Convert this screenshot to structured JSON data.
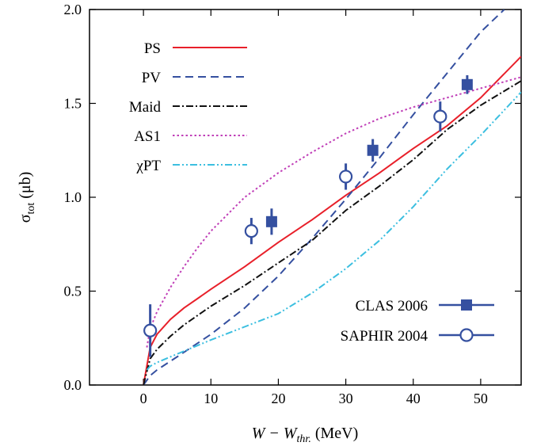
{
  "chart_data": {
    "type": "line",
    "title": "",
    "xlabel": {
      "main": "W − W",
      "sub": "thr.",
      "unit": " (MeV)"
    },
    "ylabel": {
      "main": "σ",
      "sub": "tot",
      "unit": " (μb)"
    },
    "xlim": [
      -8,
      56
    ],
    "ylim": [
      0,
      2.0
    ],
    "xticks": [
      0,
      10,
      20,
      30,
      40,
      50
    ],
    "yticks": [
      0,
      0.5,
      1.0,
      1.5,
      2.0
    ],
    "xtick_labels": [
      "0",
      "10",
      "20",
      "30",
      "40",
      "50"
    ],
    "ytick_labels": [
      "0.0",
      "0.5",
      "1.0",
      "1.5",
      "2.0"
    ],
    "grid": false,
    "legend_lines_position": "top-left",
    "legend_points_position": "bottom-right",
    "series": [
      {
        "name": "PS",
        "color": "#e8202a",
        "dash": "solid",
        "x": [
          0,
          1,
          2,
          4,
          6,
          8,
          10,
          15,
          20,
          25,
          30,
          35,
          40,
          45,
          50,
          56
        ],
        "y": [
          0,
          0.2,
          0.27,
          0.35,
          0.41,
          0.46,
          0.51,
          0.63,
          0.76,
          0.88,
          1.01,
          1.13,
          1.26,
          1.38,
          1.53,
          1.75
        ]
      },
      {
        "name": "PV",
        "color": "#3550a0",
        "dash": "10 6",
        "x": [
          0,
          1,
          2,
          5,
          10,
          15,
          20,
          25,
          30,
          35,
          40,
          45,
          50,
          53.5
        ],
        "y": [
          0,
          0.05,
          0.08,
          0.15,
          0.27,
          0.41,
          0.58,
          0.78,
          0.99,
          1.21,
          1.44,
          1.66,
          1.88,
          2.0
        ]
      },
      {
        "name": "Maid",
        "color": "#111111",
        "dash": "9 3 2 3",
        "x": [
          0,
          1,
          2,
          4,
          6,
          8,
          10,
          15,
          20,
          25,
          30,
          35,
          40,
          45,
          50,
          56
        ],
        "y": [
          0,
          0.14,
          0.19,
          0.26,
          0.32,
          0.37,
          0.42,
          0.53,
          0.65,
          0.77,
          0.93,
          1.06,
          1.2,
          1.36,
          1.49,
          1.62
        ]
      },
      {
        "name": "AS1",
        "color": "#c040b8",
        "dash": "2.5 3",
        "x": [
          0.5,
          1,
          2,
          4,
          6,
          8,
          10,
          15,
          20,
          25,
          30,
          35,
          40,
          45,
          50,
          56
        ],
        "y": [
          0.2,
          0.3,
          0.39,
          0.52,
          0.63,
          0.73,
          0.82,
          1.0,
          1.13,
          1.24,
          1.34,
          1.42,
          1.48,
          1.53,
          1.58,
          1.64
        ]
      },
      {
        "name": "χPT",
        "color": "#3cbfe0",
        "dash": "9 3 2 3 2 3",
        "x": [
          0.5,
          1,
          2,
          4,
          6,
          8,
          10,
          15,
          20,
          25,
          30,
          35,
          40,
          45,
          50,
          56
        ],
        "y": [
          0.08,
          0.1,
          0.12,
          0.15,
          0.18,
          0.21,
          0.24,
          0.31,
          0.38,
          0.49,
          0.62,
          0.77,
          0.95,
          1.15,
          1.33,
          1.56
        ]
      }
    ],
    "points": [
      {
        "name": "CLAS 2006",
        "marker": "filled-square",
        "color": "#3550a0",
        "x": [
          19,
          34,
          48
        ],
        "y": [
          0.87,
          1.25,
          1.6
        ],
        "yerr": [
          0.07,
          0.06,
          0.05
        ]
      },
      {
        "name": "SAPHIR 2004",
        "marker": "open-circle",
        "color": "#3550a0",
        "x": [
          1,
          16,
          30,
          44
        ],
        "y": [
          0.29,
          0.82,
          1.11,
          1.43
        ],
        "yerr": [
          0.14,
          0.07,
          0.07,
          0.08
        ]
      }
    ]
  }
}
